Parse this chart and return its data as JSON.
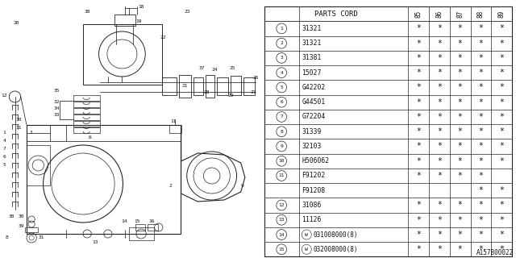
{
  "diagram_id": "A157B00022",
  "parts": [
    {
      "num": "1",
      "code": "31321",
      "marks": [
        1,
        1,
        1,
        1,
        1
      ]
    },
    {
      "num": "2",
      "code": "31321",
      "marks": [
        1,
        1,
        1,
        1,
        1
      ]
    },
    {
      "num": "3",
      "code": "31381",
      "marks": [
        1,
        1,
        1,
        1,
        1
      ]
    },
    {
      "num": "4",
      "code": "15027",
      "marks": [
        1,
        1,
        1,
        1,
        1
      ]
    },
    {
      "num": "5",
      "code": "G42202",
      "marks": [
        1,
        1,
        1,
        1,
        1
      ]
    },
    {
      "num": "6",
      "code": "G44501",
      "marks": [
        1,
        1,
        1,
        1,
        1
      ]
    },
    {
      "num": "7",
      "code": "G72204",
      "marks": [
        1,
        1,
        1,
        1,
        1
      ]
    },
    {
      "num": "8",
      "code": "31339",
      "marks": [
        1,
        1,
        1,
        1,
        1
      ]
    },
    {
      "num": "9",
      "code": "32103",
      "marks": [
        1,
        1,
        1,
        1,
        1
      ]
    },
    {
      "num": "10",
      "code": "H506062",
      "marks": [
        1,
        1,
        1,
        1,
        1
      ]
    },
    {
      "num": "11",
      "code": "F91202",
      "marks": [
        1,
        1,
        1,
        1,
        0
      ],
      "show_num": true
    },
    {
      "num": "11",
      "code": "F91208",
      "marks": [
        0,
        0,
        0,
        1,
        1
      ],
      "show_num": false
    },
    {
      "num": "12",
      "code": "31086",
      "marks": [
        1,
        1,
        1,
        1,
        1
      ]
    },
    {
      "num": "13",
      "code": "11126",
      "marks": [
        1,
        1,
        1,
        1,
        1
      ]
    },
    {
      "num": "14",
      "code": "W031008000(8)",
      "marks": [
        1,
        1,
        1,
        1,
        1
      ],
      "w_prefix": true
    },
    {
      "num": "15",
      "code": "W032008000(8)",
      "marks": [
        1,
        1,
        1,
        1,
        1
      ],
      "w_prefix": true
    }
  ],
  "years": [
    "85",
    "86",
    "87",
    "88",
    "89"
  ],
  "bg_color": "#ffffff",
  "line_color": "#222222",
  "text_color": "#111111",
  "gray": "#888888"
}
